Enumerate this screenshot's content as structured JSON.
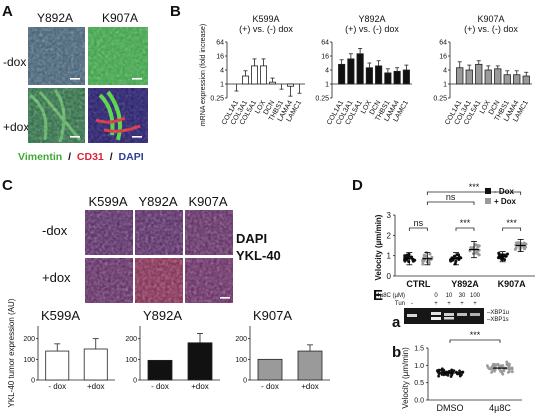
{
  "panel_letters": {
    "A": "A",
    "B": "B",
    "C": "C",
    "D": "D",
    "E": "E",
    "a": "a",
    "b": "b"
  },
  "panel_a": {
    "col_labels": [
      "Y892A",
      "K907A"
    ],
    "row_labels": [
      "-dox",
      "+dox"
    ],
    "legend": {
      "vimentin": "Vimentin",
      "sep1": "/",
      "cd31": "CD31",
      "sep2": "/",
      "dapi": "DAPI"
    },
    "colors": {
      "vimentin": "#3daa35",
      "cd31": "#d8233a",
      "dapi": "#2e3d9a"
    }
  },
  "panel_c": {
    "col_labels": [
      "K599A",
      "Y892A",
      "K907A"
    ],
    "row_labels": [
      "-dox",
      "+dox"
    ],
    "legend": {
      "dapi": "DAPI",
      "ykl": "YKL-40"
    },
    "colors": {
      "dapi": "#3a3fb0",
      "ykl": "#e0283c"
    }
  },
  "panel_d_legend": {
    "minus": "- Dox",
    "plus": "+ Dox"
  },
  "panel_e_blot": {
    "label_conc": "4µ8C (µM)",
    "label_tun": "Tun",
    "conc": [
      "0",
      "10",
      "30",
      "100"
    ],
    "tun": [
      "-",
      "+",
      "+",
      "+",
      "+"
    ],
    "bands": [
      "XBP1u",
      "XBP1s"
    ]
  },
  "chart_data": [
    {
      "id": "B1",
      "type": "bar",
      "title": "K599A",
      "subtitle": "(+) vs. (-) dox",
      "ylabel": "mRNA expression (fold increase)",
      "yscale": "log2",
      "yticks": [
        "64",
        "16",
        "4",
        "1",
        "0.25"
      ],
      "ylim": [
        0.25,
        64
      ],
      "categories": [
        "COL1A1",
        "COL3A1",
        "COL5A1",
        "LOX",
        "DCN",
        "THBS1",
        "LAMA4",
        "LAMC1"
      ],
      "values": [
        1.0,
        2.2,
        6.0,
        6.0,
        1.2,
        1.0,
        0.8,
        1.0
      ],
      "errors": [
        0.5,
        1.5,
        6.0,
        6.0,
        0.6,
        0.4,
        0.5,
        0.6
      ],
      "bar_color": "#ffffff"
    },
    {
      "id": "B2",
      "type": "bar",
      "title": "Y892A",
      "subtitle": "(+) vs. (-) dox",
      "ylabel": "",
      "yscale": "log2",
      "yticks": [
        "64",
        "16",
        "4",
        "1",
        "0.25"
      ],
      "ylim": [
        0.25,
        64
      ],
      "categories": [
        "COL1A1",
        "COL3A1",
        "COL5A1",
        "LOX",
        "DCN",
        "THBS1",
        "LAMA4",
        "LAMC1"
      ],
      "values": [
        7.0,
        12.0,
        20.0,
        5.0,
        6.0,
        3.0,
        3.5,
        4.0
      ],
      "errors": [
        4.0,
        8.0,
        14.0,
        3.0,
        4.0,
        1.5,
        1.5,
        2.5
      ],
      "bar_color": "#111111"
    },
    {
      "id": "B3",
      "type": "bar",
      "title": "K907A",
      "subtitle": "(+) vs. (-) dox",
      "ylabel": "",
      "yscale": "log2",
      "yticks": [
        "64",
        "16",
        "4",
        "1",
        "0.25"
      ],
      "ylim": [
        0.25,
        64
      ],
      "categories": [
        "COL1A1",
        "COL3A1",
        "COL5A1",
        "LOX",
        "DCN",
        "THBS1",
        "LAMA4",
        "LAMC1"
      ],
      "values": [
        5.0,
        4.0,
        7.0,
        4.0,
        4.5,
        2.5,
        2.5,
        2.2
      ],
      "errors": [
        4.0,
        2.5,
        3.0,
        2.0,
        1.5,
        1.2,
        1.2,
        1.0
      ],
      "bar_color": "#9a9a9a"
    },
    {
      "id": "C1",
      "type": "bar",
      "title": "K599A",
      "ylabel": "YKL-40 tumor expression (AU)",
      "yticks": [
        "0",
        "100",
        "200",
        "300"
      ],
      "ylim": [
        0,
        300
      ],
      "categories": [
        "- dox",
        "+dox"
      ],
      "values": [
        140,
        150
      ],
      "errors": [
        35,
        50
      ],
      "bar_colors": [
        "#ffffff",
        "#ffffff"
      ]
    },
    {
      "id": "C2",
      "type": "bar",
      "title": "Y892A",
      "ylabel": "",
      "yticks": [
        "0",
        "100",
        "200",
        "300"
      ],
      "ylim": [
        0,
        300
      ],
      "categories": [
        "- dox",
        "+dox"
      ],
      "values": [
        95,
        180
      ],
      "errors": [
        0,
        45
      ],
      "bar_colors": [
        "#111111",
        "#111111"
      ]
    },
    {
      "id": "C3",
      "type": "bar",
      "title": "K907A",
      "ylabel": "",
      "yticks": [
        "0",
        "100",
        "200",
        "300"
      ],
      "ylim": [
        0,
        300
      ],
      "categories": [
        "- dox",
        "+dox"
      ],
      "values": [
        100,
        140
      ],
      "errors": [
        0,
        30
      ],
      "bar_colors": [
        "#9a9a9a",
        "#9a9a9a"
      ]
    },
    {
      "id": "D",
      "type": "scatter",
      "ylabel": "Velocity (µm/min)",
      "yticks": [
        "0",
        "1",
        "2",
        "3"
      ],
      "ylim": [
        0,
        3
      ],
      "categories": [
        "CTRL",
        "Y892A",
        "K907A"
      ],
      "series": [
        {
          "name": "- Dox",
          "color": "#111111",
          "means": [
            0.85,
            0.85,
            0.95
          ],
          "sd": [
            0.3,
            0.3,
            0.25
          ]
        },
        {
          "name": "+ Dox",
          "color": "#9a9a9a",
          "means": [
            0.85,
            1.3,
            1.5
          ],
          "sd": [
            0.3,
            0.4,
            0.3
          ]
        }
      ],
      "significance": [
        {
          "label": "ns",
          "from": [
            0,
            0
          ],
          "to": [
            0,
            1
          ]
        },
        {
          "label": "***",
          "from": [
            1,
            0
          ],
          "to": [
            1,
            1
          ]
        },
        {
          "label": "***",
          "from": [
            2,
            0
          ],
          "to": [
            2,
            1
          ]
        },
        {
          "label": "ns",
          "from": [
            0,
            1
          ],
          "to": [
            1,
            1
          ]
        },
        {
          "label": "***",
          "from": [
            0,
            1
          ],
          "to": [
            2,
            1
          ]
        }
      ]
    },
    {
      "id": "Eb",
      "type": "scatter",
      "ylabel": "Velocity (µm/min)",
      "yticks": [
        "0.0",
        "0.5",
        "1.0",
        "1.5"
      ],
      "ylim": [
        0,
        1.5
      ],
      "categories": [
        "DMSO",
        "4µ8C"
      ],
      "series": [
        {
          "name": "DMSO",
          "color": "#111111",
          "mean": 0.78,
          "sd": 0.15
        },
        {
          "name": "4µ8C",
          "color": "#9a9a9a",
          "mean": 0.92,
          "sd": 0.2
        }
      ],
      "significance": [
        {
          "label": "***",
          "from": 0,
          "to": 1
        }
      ]
    }
  ]
}
